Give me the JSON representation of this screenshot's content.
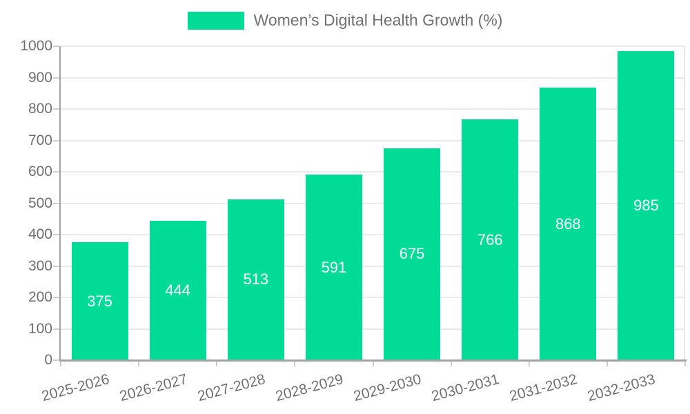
{
  "legend": {
    "label": "Women’s Digital Health Growth (%)"
  },
  "chart_data": {
    "type": "bar",
    "title": "Women’s Digital Health Growth (%)",
    "categories": [
      "2025-2026",
      "2026-2027",
      "2027-2028",
      "2028-2029",
      "2029-2030",
      "2030-2031",
      "2031-2032",
      "2032-2033"
    ],
    "values": [
      375,
      444,
      513,
      591,
      675,
      766,
      868,
      985
    ],
    "y_ticks": [
      0,
      100,
      200,
      300,
      400,
      500,
      600,
      700,
      800,
      900,
      1000
    ],
    "ylim": [
      0,
      1000
    ],
    "xlabel": "",
    "ylabel": "",
    "grid": true,
    "legend_position": "top",
    "x_label_rotation_deg": -15,
    "value_labels": "inside-center",
    "colors": {
      "bar": "#00DB96",
      "grid": "#e9e9e9",
      "axis_line": "#a3a3a3",
      "tick": "#cfcfcf",
      "axis_text": "#707070",
      "value_label": "#ffffff",
      "background": "#ffffff"
    }
  }
}
